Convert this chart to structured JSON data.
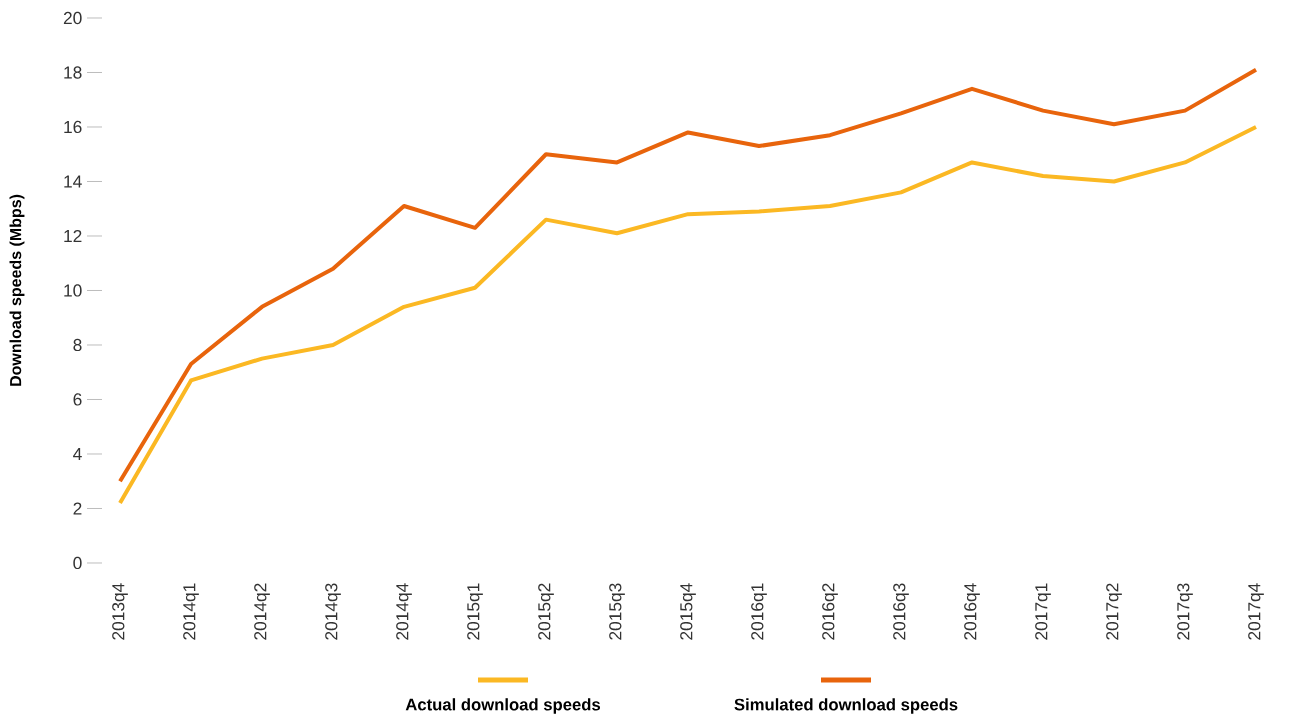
{
  "chart_data": {
    "type": "line",
    "ylabel": "Download speeds (Mbps)",
    "categories": [
      "2013q4",
      "2014q1",
      "2014q2",
      "2014q3",
      "2014q4",
      "2015q1",
      "2015q2",
      "2015q3",
      "2015q4",
      "2016q1",
      "2016q2",
      "2016q3",
      "2016q4",
      "2017q1",
      "2017q2",
      "2017q3",
      "2017q4"
    ],
    "series": [
      {
        "name": "Actual download speeds",
        "color": "#fbb823",
        "values": [
          2.2,
          6.7,
          7.5,
          8.0,
          9.4,
          10.1,
          12.6,
          12.1,
          12.8,
          12.9,
          13.1,
          13.6,
          14.7,
          14.2,
          14.0,
          14.7,
          16.0
        ]
      },
      {
        "name": "Simulated download speeds",
        "color": "#e8640c",
        "values": [
          3.0,
          7.3,
          9.4,
          10.8,
          13.1,
          12.3,
          15.0,
          14.7,
          15.8,
          15.3,
          15.7,
          16.5,
          17.4,
          16.6,
          16.1,
          16.6,
          18.1
        ]
      }
    ],
    "ylim": [
      0,
      20
    ],
    "yticks": [
      0,
      2,
      4,
      6,
      8,
      10,
      12,
      14,
      16,
      18,
      20
    ],
    "grid": false,
    "legend": "bottom",
    "marker": "none",
    "line_style": "solid"
  }
}
